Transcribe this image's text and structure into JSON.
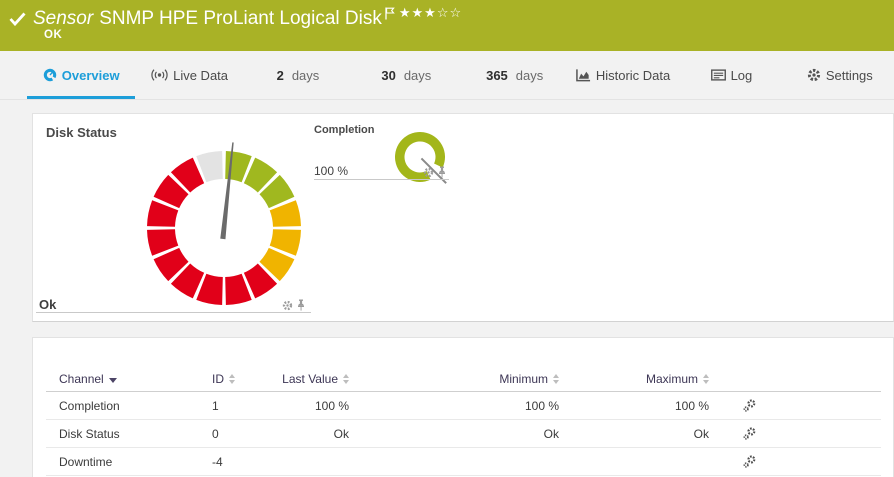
{
  "titlebar": {
    "background": "#a9b226",
    "type_label": "Sensor",
    "title": "SNMP HPE ProLiant Logical Disk",
    "status": "OK",
    "rating_filled": 3,
    "rating_empty": 2
  },
  "tabs": {
    "accent": "#1d9ed9",
    "items": [
      {
        "label": "Overview",
        "active": true
      },
      {
        "label": "Live Data"
      },
      {
        "num": "2",
        "unit": "days"
      },
      {
        "num": "30",
        "unit": "days"
      },
      {
        "num": "365",
        "unit": "days"
      },
      {
        "label": "Historic Data"
      },
      {
        "label": "Log"
      },
      {
        "label": "Settings"
      }
    ]
  },
  "overview": {
    "disk_gauge": {
      "title": "Disk Status",
      "value": "Ok",
      "needle_angle_deg": 6,
      "segment_colors": [
        "#a0b81f",
        "#a0b81f",
        "#a0b81f",
        "#f0b400",
        "#f0b400",
        "#f0b400",
        "#e10019",
        "#e10019",
        "#e10019",
        "#e10019",
        "#e10019",
        "#e10019",
        "#e10019",
        "#e10019",
        "#e10019",
        "#e3e3e3"
      ]
    },
    "completion_gauge": {
      "title": "Completion",
      "value": "100 %",
      "needle_angle_deg": 135,
      "arc_color": "#a3b61a",
      "arc_start_deg": 155,
      "arc_sweep_deg": 320
    }
  },
  "channel_table": {
    "columns": [
      {
        "label": "Channel"
      },
      {
        "label": "ID"
      },
      {
        "label": "Last Value"
      },
      {
        "label": "Minimum"
      },
      {
        "label": "Maximum"
      }
    ],
    "rows": [
      {
        "channel": "Completion",
        "id": "1",
        "last_value": "100 %",
        "minimum": "100 %",
        "maximum": "100 %"
      },
      {
        "channel": "Disk Status",
        "id": "0",
        "last_value": "Ok",
        "minimum": "Ok",
        "maximum": "Ok"
      },
      {
        "channel": "Downtime",
        "id": "-4",
        "last_value": "",
        "minimum": "",
        "maximum": ""
      }
    ]
  }
}
